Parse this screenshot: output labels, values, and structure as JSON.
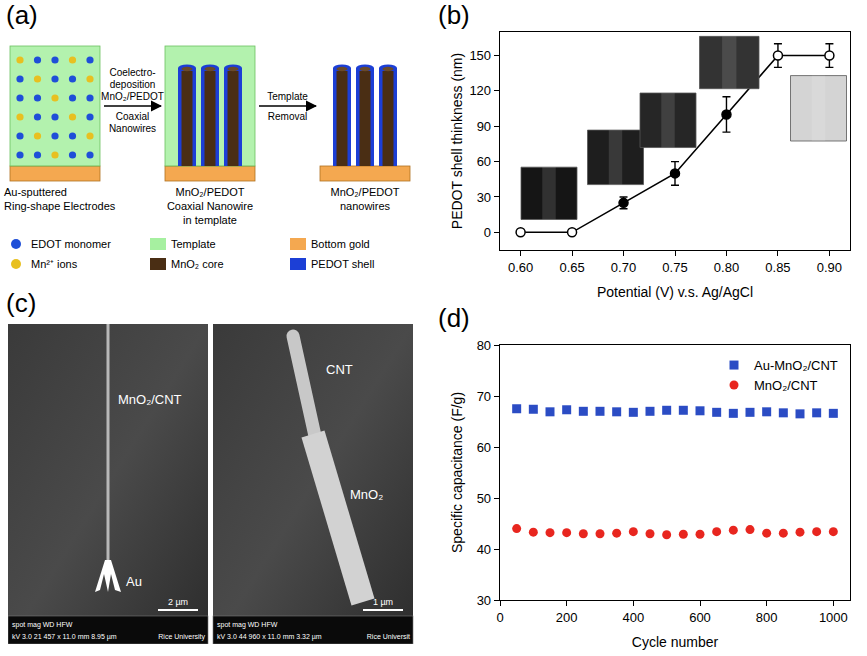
{
  "panel_labels": [
    "(a)",
    "(b)",
    "(c)",
    "(d)"
  ],
  "panel_a": {
    "steps": [
      {
        "label": [
          "Au-sputtered",
          "Ring-shape Electrodes"
        ]
      },
      {
        "label": [
          "MnO₂/PEDOT",
          "Coaxial Nanowire in template"
        ]
      },
      {
        "label": [
          "MnO₂/PEDOT nanowires"
        ]
      }
    ],
    "arrows": [
      {
        "above": [
          "Coelectro-",
          "deposition",
          "MnO₂/PEDOT"
        ],
        "below": [
          "Coaxial",
          "Nanowires"
        ]
      },
      {
        "above": [
          "Template"
        ],
        "below": [
          "Removal"
        ]
      }
    ],
    "legend": [
      {
        "label": "EDOT monomer",
        "color": "#1f4fd8",
        "marker": "dot"
      },
      {
        "label": "Mn²⁺ ions",
        "color": "#e8c020",
        "marker": "dot"
      },
      {
        "label": "Template",
        "color": "#a6f0a0",
        "marker": "box"
      },
      {
        "label": "MnO₂ core",
        "color": "#4a2e14",
        "marker": "box"
      },
      {
        "label": "Bottom gold",
        "color": "#f4a850",
        "marker": "box"
      },
      {
        "label": "PEDOT shell",
        "color": "#1c3fd6",
        "marker": "box"
      }
    ]
  },
  "panel_c": {
    "images": [
      {
        "labels": [
          "MnO₂/CNT",
          "Au"
        ],
        "scale_bar": "2 µm",
        "info_header": "spot    mag    WD    HFW",
        "info_values": "kV 3.0  21 457 x  11.0 mm  8.95 µm",
        "info_org": "Rice University"
      },
      {
        "labels": [
          "CNT",
          "MnO₂"
        ],
        "scale_bar": "1 µm",
        "info_header": "spot    mag    WD    HFW",
        "info_values": "kV 3.0  44 960 x  11.0 mm  3.32 µm",
        "info_org": "Rice Universit"
      }
    ]
  },
  "chart_data": [
    {
      "type": "line",
      "x_label": "Potential (V) v.s. Ag/AgCl",
      "y_label": "PEDOT shell thinkness (nm)",
      "x": [
        0.6,
        0.65,
        0.7,
        0.75,
        0.8,
        0.85,
        0.9
      ],
      "values": [
        0,
        0,
        25,
        50,
        100,
        150,
        150
      ],
      "errors": [
        0,
        0,
        5,
        10,
        15,
        10,
        10
      ],
      "color": "#000000",
      "colors": [
        "#ffffff",
        "#ffffff",
        "#000000",
        "#000000",
        "#000000",
        "#ffffff",
        "#ffffff"
      ],
      "marker": "circle",
      "xlim": [
        0.58,
        0.92
      ],
      "xticks": [
        {
          "value": 0.6,
          "label": "0.60"
        },
        {
          "value": 0.65,
          "label": "0.65"
        },
        {
          "value": 0.7,
          "label": "0.70"
        },
        {
          "value": 0.75,
          "label": "0.75"
        },
        {
          "value": 0.8,
          "label": "0.80"
        },
        {
          "value": 0.85,
          "label": "0.85"
        },
        {
          "value": 0.9,
          "label": "0.90"
        }
      ],
      "ylim": [
        -15,
        170
      ],
      "yticks": [
        0,
        30,
        60,
        90,
        120,
        150
      ],
      "grid": false
    },
    {
      "type": "scatter",
      "x_label": "Cycle number",
      "y_label": "Specific capacitance (F/g)",
      "x": [
        50,
        100,
        150,
        200,
        250,
        300,
        350,
        400,
        450,
        500,
        550,
        600,
        650,
        700,
        750,
        800,
        850,
        900,
        950,
        1000
      ],
      "series": [
        {
          "name": "Au-MnO₂/CNT",
          "color": "#2b4cc4",
          "marker": "square",
          "values": [
            67.5,
            67.4,
            66.9,
            67.3,
            67.0,
            67.0,
            66.9,
            66.8,
            67.0,
            67.2,
            67.2,
            67.1,
            66.8,
            66.6,
            66.8,
            66.9,
            66.7,
            66.5,
            66.7,
            66.6
          ]
        },
        {
          "name": "MnO₂/CNT",
          "color": "#e8261f",
          "marker": "circle",
          "values": [
            44.0,
            43.3,
            43.2,
            43.2,
            43.0,
            43.0,
            43.1,
            43.4,
            43.0,
            42.8,
            42.9,
            42.9,
            43.4,
            43.7,
            43.8,
            43.1,
            43.1,
            43.3,
            43.4,
            43.4
          ]
        }
      ],
      "xlim": [
        0,
        1050
      ],
      "xticks": [
        0,
        200,
        400,
        600,
        800,
        1000
      ],
      "ylim": [
        30,
        80
      ],
      "yticks": [
        30,
        40,
        50,
        60,
        70,
        80
      ],
      "legend": "upper right",
      "grid": false
    }
  ]
}
